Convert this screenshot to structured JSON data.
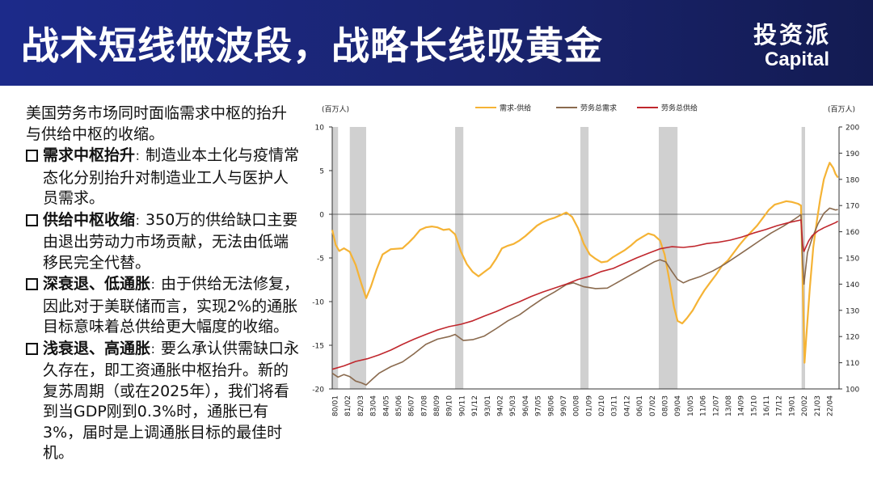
{
  "header": {
    "title": "战术短线做波段，战略长线吸黄金",
    "logo_cn": "投资派",
    "logo_en": "Capital",
    "background": "#1a2470"
  },
  "text": {
    "intro": "美国劳务市场同时面临需求中枢的抬升与供给中枢的收缩。",
    "bullets": [
      {
        "head": "需求中枢抬升",
        "sep": "：",
        "body": "制造业本土化与疫情常态化分别抬升对制造业工人与医护人员需求。"
      },
      {
        "head": "供给中枢收缩",
        "sep": "：",
        "body": "350万的供给缺口主要由退出劳动力市场贡献，无法由低端移民完全代替。"
      },
      {
        "head": "深衰退、低通胀",
        "sep": "：",
        "body": "由于供给无法修复，因此对于美联储而言，实现2%的通胀目标意味着总供给更大幅度的收缩。"
      },
      {
        "head": "浅衰退、高通胀",
        "sep": "：",
        "body": "要么承认供需缺口永久存在，即工资通胀中枢抬升。新的复苏周期（或在2025年），我们将看到当GDP刚到0.3%时，通胀已有3%，届时是上调通胀目标的最佳时机。"
      }
    ]
  },
  "chart_data": {
    "type": "line",
    "left_unit": "(百万人)",
    "right_unit": "(百万人)",
    "y_left": {
      "min": -20,
      "max": 10,
      "ticks": [
        10,
        5,
        0,
        -5,
        -10,
        -15,
        -20
      ]
    },
    "y_right": {
      "min": 100,
      "max": 200,
      "ticks": [
        200,
        190,
        180,
        170,
        160,
        150,
        140,
        130,
        120,
        110,
        100
      ]
    },
    "x_range": [
      1980.0,
      2023.3
    ],
    "x_ticks": [
      "80/01",
      "81/02",
      "82/03",
      "83/04",
      "84/05",
      "85/06",
      "86/07",
      "87/08",
      "88/09",
      "89/10",
      "90/11",
      "91/12",
      "93/01",
      "94/02",
      "95/03",
      "96/04",
      "97/05",
      "98/06",
      "99/07",
      "00/08",
      "01/09",
      "02/10",
      "03/11",
      "04/12",
      "06/01",
      "07/02",
      "08/03",
      "09/04",
      "10/05",
      "11/06",
      "12/07",
      "13/08",
      "14/09",
      "15/10",
      "16/11",
      "17/12",
      "19/01",
      "20/02",
      "21/03",
      "22/04"
    ],
    "recessions": [
      [
        1980.0,
        1980.5
      ],
      [
        1981.5,
        1982.9
      ],
      [
        1990.5,
        1991.2
      ],
      [
        2001.2,
        2001.9
      ],
      [
        2007.9,
        2009.5
      ],
      [
        2020.1,
        2020.4
      ]
    ],
    "series": [
      {
        "name": "需求-供给",
        "axis": "left",
        "color": "#f5b335",
        "points": [
          [
            1980.0,
            -1.8
          ],
          [
            1980.3,
            -3.5
          ],
          [
            1980.6,
            -4.2
          ],
          [
            1981.0,
            -3.9
          ],
          [
            1981.5,
            -4.3
          ],
          [
            1982.0,
            -5.8
          ],
          [
            1982.5,
            -8.0
          ],
          [
            1982.9,
            -9.6
          ],
          [
            1983.3,
            -8.3
          ],
          [
            1983.8,
            -6.3
          ],
          [
            1984.3,
            -4.6
          ],
          [
            1985.0,
            -4.0
          ],
          [
            1986.0,
            -3.9
          ],
          [
            1986.5,
            -3.3
          ],
          [
            1987.0,
            -2.6
          ],
          [
            1987.5,
            -1.8
          ],
          [
            1988.0,
            -1.5
          ],
          [
            1988.5,
            -1.4
          ],
          [
            1989.0,
            -1.5
          ],
          [
            1989.5,
            -1.8
          ],
          [
            1990.0,
            -1.7
          ],
          [
            1990.5,
            -2.3
          ],
          [
            1991.0,
            -4.3
          ],
          [
            1991.5,
            -5.7
          ],
          [
            1992.0,
            -6.6
          ],
          [
            1992.5,
            -7.1
          ],
          [
            1993.0,
            -6.6
          ],
          [
            1993.5,
            -6.1
          ],
          [
            1994.0,
            -5.1
          ],
          [
            1994.5,
            -3.9
          ],
          [
            1995.0,
            -3.6
          ],
          [
            1995.5,
            -3.4
          ],
          [
            1996.0,
            -3.0
          ],
          [
            1996.5,
            -2.5
          ],
          [
            1997.0,
            -1.9
          ],
          [
            1997.5,
            -1.3
          ],
          [
            1998.0,
            -0.9
          ],
          [
            1998.5,
            -0.6
          ],
          [
            1999.0,
            -0.4
          ],
          [
            1999.5,
            -0.1
          ],
          [
            2000.0,
            0.2
          ],
          [
            2000.5,
            -0.3
          ],
          [
            2001.0,
            -1.6
          ],
          [
            2001.5,
            -3.4
          ],
          [
            2002.0,
            -4.6
          ],
          [
            2002.5,
            -5.1
          ],
          [
            2003.0,
            -5.5
          ],
          [
            2003.5,
            -5.4
          ],
          [
            2004.0,
            -4.9
          ],
          [
            2004.5,
            -4.5
          ],
          [
            2005.0,
            -4.1
          ],
          [
            2005.5,
            -3.6
          ],
          [
            2006.0,
            -3.0
          ],
          [
            2006.5,
            -2.6
          ],
          [
            2007.0,
            -2.2
          ],
          [
            2007.5,
            -2.4
          ],
          [
            2008.0,
            -3.0
          ],
          [
            2008.4,
            -4.6
          ],
          [
            2008.8,
            -7.5
          ],
          [
            2009.2,
            -10.6
          ],
          [
            2009.5,
            -12.2
          ],
          [
            2009.9,
            -12.5
          ],
          [
            2010.3,
            -11.9
          ],
          [
            2010.8,
            -11.0
          ],
          [
            2011.3,
            -9.8
          ],
          [
            2011.8,
            -8.7
          ],
          [
            2012.3,
            -7.8
          ],
          [
            2012.8,
            -6.9
          ],
          [
            2013.3,
            -5.9
          ],
          [
            2013.8,
            -5.3
          ],
          [
            2014.3,
            -4.4
          ],
          [
            2014.8,
            -3.5
          ],
          [
            2015.3,
            -2.7
          ],
          [
            2015.8,
            -2.0
          ],
          [
            2016.3,
            -1.3
          ],
          [
            2016.8,
            -0.4
          ],
          [
            2017.3,
            0.5
          ],
          [
            2017.8,
            1.1
          ],
          [
            2018.3,
            1.3
          ],
          [
            2018.8,
            1.5
          ],
          [
            2019.3,
            1.4
          ],
          [
            2019.8,
            1.2
          ],
          [
            2020.05,
            1.0
          ],
          [
            2020.2,
            -8.0
          ],
          [
            2020.35,
            -17.0
          ],
          [
            2020.5,
            -14.0
          ],
          [
            2020.8,
            -8.5
          ],
          [
            2021.1,
            -3.8
          ],
          [
            2021.4,
            -0.8
          ],
          [
            2021.7,
            1.8
          ],
          [
            2022.0,
            4.0
          ],
          [
            2022.3,
            5.2
          ],
          [
            2022.5,
            5.9
          ],
          [
            2022.8,
            5.3
          ],
          [
            2023.0,
            4.6
          ],
          [
            2023.2,
            4.2
          ]
        ]
      },
      {
        "name": "劳务总需求",
        "axis": "right",
        "color": "#8a6a4e",
        "points": [
          [
            1980.0,
            106.0
          ],
          [
            1980.5,
            104.5
          ],
          [
            1981.0,
            105.5
          ],
          [
            1981.5,
            104.7
          ],
          [
            1982.0,
            103.0
          ],
          [
            1982.5,
            102.3
          ],
          [
            1982.9,
            101.5
          ],
          [
            1983.5,
            104.0
          ],
          [
            1984.0,
            106.0
          ],
          [
            1985.0,
            108.5
          ],
          [
            1986.0,
            110.3
          ],
          [
            1987.0,
            113.5
          ],
          [
            1988.0,
            117.0
          ],
          [
            1989.0,
            119.0
          ],
          [
            1990.0,
            120.0
          ],
          [
            1990.5,
            120.8
          ],
          [
            1991.2,
            118.5
          ],
          [
            1992.0,
            118.8
          ],
          [
            1993.0,
            120.2
          ],
          [
            1994.0,
            123.0
          ],
          [
            1995.0,
            126.0
          ],
          [
            1996.0,
            128.3
          ],
          [
            1997.0,
            131.5
          ],
          [
            1998.0,
            134.5
          ],
          [
            1999.0,
            137.0
          ],
          [
            2000.0,
            139.8
          ],
          [
            2000.6,
            140.5
          ],
          [
            2001.5,
            139.0
          ],
          [
            2002.5,
            138.3
          ],
          [
            2003.5,
            138.5
          ],
          [
            2004.5,
            141.0
          ],
          [
            2005.5,
            143.5
          ],
          [
            2006.5,
            146.0
          ],
          [
            2007.5,
            148.5
          ],
          [
            2008.0,
            149.3
          ],
          [
            2008.5,
            148.5
          ],
          [
            2009.0,
            145.0
          ],
          [
            2009.5,
            141.8
          ],
          [
            2010.0,
            140.5
          ],
          [
            2010.5,
            141.5
          ],
          [
            2011.5,
            143.0
          ],
          [
            2012.5,
            145.0
          ],
          [
            2013.5,
            147.5
          ],
          [
            2014.5,
            150.5
          ],
          [
            2015.5,
            153.5
          ],
          [
            2016.5,
            156.5
          ],
          [
            2017.5,
            159.5
          ],
          [
            2018.5,
            162.0
          ],
          [
            2019.5,
            164.8
          ],
          [
            2020.05,
            166.5
          ],
          [
            2020.2,
            148.0
          ],
          [
            2020.3,
            140.0
          ],
          [
            2020.6,
            152.0
          ],
          [
            2021.0,
            157.5
          ],
          [
            2021.5,
            163.0
          ],
          [
            2022.0,
            167.0
          ],
          [
            2022.5,
            169.0
          ],
          [
            2023.0,
            168.3
          ],
          [
            2023.2,
            168.5
          ]
        ]
      },
      {
        "name": "劳务总供给",
        "axis": "right",
        "color": "#c0272d",
        "points": [
          [
            1980.0,
            107.5
          ],
          [
            1981.0,
            108.8
          ],
          [
            1982.0,
            110.5
          ],
          [
            1983.0,
            111.5
          ],
          [
            1984.0,
            113.0
          ],
          [
            1985.0,
            114.8
          ],
          [
            1986.0,
            117.0
          ],
          [
            1987.0,
            119.0
          ],
          [
            1988.0,
            120.8
          ],
          [
            1989.0,
            122.5
          ],
          [
            1990.0,
            123.8
          ],
          [
            1991.0,
            124.7
          ],
          [
            1992.0,
            126.0
          ],
          [
            1993.0,
            127.8
          ],
          [
            1994.0,
            129.5
          ],
          [
            1995.0,
            131.5
          ],
          [
            1996.0,
            133.3
          ],
          [
            1997.0,
            135.3
          ],
          [
            1998.0,
            137.0
          ],
          [
            1999.0,
            138.5
          ],
          [
            2000.0,
            140.0
          ],
          [
            2001.0,
            141.8
          ],
          [
            2002.0,
            143.0
          ],
          [
            2003.0,
            144.8
          ],
          [
            2004.0,
            146.0
          ],
          [
            2005.0,
            148.0
          ],
          [
            2006.0,
            150.0
          ],
          [
            2007.0,
            151.8
          ],
          [
            2008.0,
            153.5
          ],
          [
            2009.0,
            154.3
          ],
          [
            2010.0,
            154.0
          ],
          [
            2011.0,
            154.5
          ],
          [
            2012.0,
            155.5
          ],
          [
            2013.0,
            156.0
          ],
          [
            2014.0,
            156.8
          ],
          [
            2015.0,
            158.0
          ],
          [
            2016.0,
            159.5
          ],
          [
            2017.0,
            160.8
          ],
          [
            2018.0,
            162.3
          ],
          [
            2019.0,
            163.5
          ],
          [
            2020.05,
            164.5
          ],
          [
            2020.2,
            155.0
          ],
          [
            2020.3,
            152.5
          ],
          [
            2020.7,
            156.5
          ],
          [
            2021.0,
            158.5
          ],
          [
            2021.5,
            160.3
          ],
          [
            2022.0,
            161.5
          ],
          [
            2022.5,
            162.5
          ],
          [
            2023.0,
            163.5
          ],
          [
            2023.2,
            164.0
          ]
        ]
      }
    ]
  }
}
